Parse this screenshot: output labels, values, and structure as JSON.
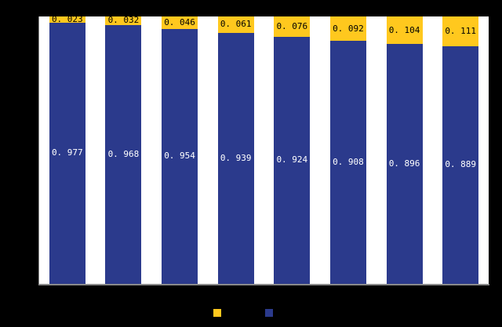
{
  "chart": {
    "background_color": "#000000",
    "plot_background_color": "#FFFFFF",
    "axis_line_color": "#8A8A8A"
  },
  "chart_data": {
    "type": "bar",
    "stacked": true,
    "percent_stacked": true,
    "orientation": "vertical",
    "categories": [
      "",
      "",
      "",
      "",
      "",
      "",
      "",
      ""
    ],
    "series": [
      {
        "name": "",
        "color": "#2B3A8C",
        "label_color": "#FFFFFF",
        "values": [
          0.977,
          0.968,
          0.954,
          0.939,
          0.924,
          0.908,
          0.896,
          0.889
        ],
        "labels": [
          "0. 977",
          "0. 968",
          "0. 954",
          "0. 939",
          "0. 924",
          "0. 908",
          "0. 896",
          "0. 889"
        ]
      },
      {
        "name": "",
        "color": "#FFC81E",
        "label_color": "#000000",
        "values": [
          0.023,
          0.032,
          0.046,
          0.061,
          0.076,
          0.092,
          0.104,
          0.111
        ],
        "labels": [
          "0. 023",
          "0. 032",
          "0. 046",
          "0. 061",
          "0. 076",
          "0. 092",
          "0. 104",
          "0. 111"
        ]
      }
    ],
    "ylim": [
      0,
      1
    ],
    "grid": false,
    "axis_tick_labels_visible": false,
    "legend_position": "bottom"
  },
  "legend": {
    "items": [
      {
        "color": "#FFC81E",
        "label": ""
      },
      {
        "color": "#2B3A8C",
        "label": ""
      }
    ]
  }
}
